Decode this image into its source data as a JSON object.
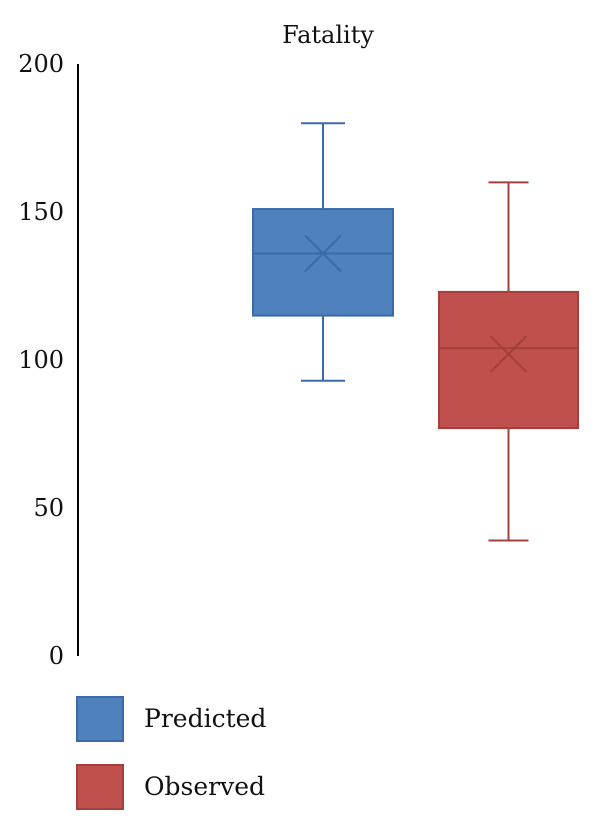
{
  "chart_data": {
    "type": "box",
    "title": "Fatality",
    "xlabel": "",
    "ylabel": "",
    "ylim": [
      0,
      200
    ],
    "yticks": [
      0,
      50,
      100,
      150,
      200
    ],
    "grid": false,
    "legend_position": "bottom-left",
    "series": [
      {
        "name": "Predicted",
        "color": "#4f81bd",
        "stroke": "#3a6aa8",
        "min": 93,
        "q1": 115,
        "median": 136,
        "q3": 151,
        "max": 180,
        "mean": 136
      },
      {
        "name": "Observed",
        "color": "#c0504d",
        "stroke": "#a33f3c",
        "min": 39,
        "q1": 77,
        "median": 104,
        "q3": 123,
        "max": 160,
        "mean": 102
      }
    ]
  }
}
